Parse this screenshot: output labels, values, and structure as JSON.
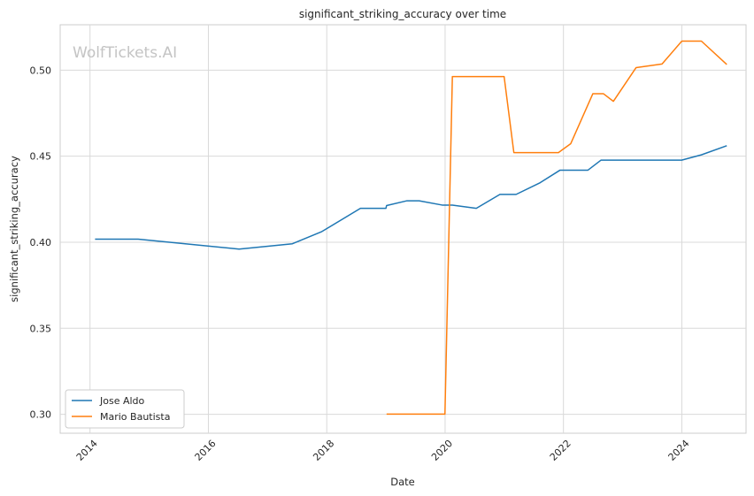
{
  "chart_data": {
    "type": "line",
    "title": "significant_striking_accuracy over time",
    "xlabel": "Date",
    "ylabel": "significant_striking_accuracy",
    "watermark": "WolfTickets.AI",
    "xlim": [
      "2013-07-01",
      "2025-02-01"
    ],
    "ylim": [
      0.289,
      0.5264
    ],
    "x_ticks": [
      "2014",
      "2016",
      "2018",
      "2020",
      "2022",
      "2024"
    ],
    "y_ticks": [
      "0.30",
      "0.35",
      "0.40",
      "0.45",
      "0.50"
    ],
    "grid": true,
    "legend_position": "lower-left",
    "series": [
      {
        "name": "Jose Aldo",
        "color": "#1f77b4",
        "points": [
          {
            "x": "2014-02-01",
            "y": 0.4018
          },
          {
            "x": "2014-10-25",
            "y": 0.4018
          },
          {
            "x": "2016-07-09",
            "y": 0.396
          },
          {
            "x": "2016-07-09",
            "y": 0.396
          },
          {
            "x": "2017-06-03",
            "y": 0.3991
          },
          {
            "x": "2017-12-02",
            "y": 0.4062
          },
          {
            "x": "2018-07-28",
            "y": 0.4197
          },
          {
            "x": "2019-01-01",
            "y": 0.4197
          },
          {
            "x": "2019-01-05",
            "y": 0.4213
          },
          {
            "x": "2019-05-11",
            "y": 0.4241
          },
          {
            "x": "2019-07-25",
            "y": 0.4241
          },
          {
            "x": "2019-12-14",
            "y": 0.4216
          },
          {
            "x": "2020-02-15",
            "y": 0.4216
          },
          {
            "x": "2020-07-12",
            "y": 0.4197
          },
          {
            "x": "2020-12-05",
            "y": 0.4278
          },
          {
            "x": "2021-03-15",
            "y": 0.4278
          },
          {
            "x": "2021-08-10",
            "y": 0.4346
          },
          {
            "x": "2021-12-11",
            "y": 0.4419
          },
          {
            "x": "2022-03-01",
            "y": 0.4419
          },
          {
            "x": "2022-06-01",
            "y": 0.4419
          },
          {
            "x": "2022-08-20",
            "y": 0.4477
          },
          {
            "x": "2023-12-31",
            "y": 0.4477
          },
          {
            "x": "2024-05-01",
            "y": 0.4508
          },
          {
            "x": "2024-10-05",
            "y": 0.4561
          }
        ]
      },
      {
        "name": "Mario Bautista",
        "color": "#ff7f0e",
        "points": [
          {
            "x": "2019-01-05",
            "y": 0.3001
          },
          {
            "x": "2019-12-31",
            "y": 0.3001
          },
          {
            "x": "2020-02-15",
            "y": 0.4963
          },
          {
            "x": "2020-12-31",
            "y": 0.4963
          },
          {
            "x": "2021-03-01",
            "y": 0.4521
          },
          {
            "x": "2021-12-01",
            "y": 0.4521
          },
          {
            "x": "2022-02-15",
            "y": 0.4573
          },
          {
            "x": "2022-07-01",
            "y": 0.4863
          },
          {
            "x": "2022-09-05",
            "y": 0.4863
          },
          {
            "x": "2022-11-05",
            "y": 0.4819
          },
          {
            "x": "2023-03-25",
            "y": 0.5015
          },
          {
            "x": "2023-09-01",
            "y": 0.5036
          },
          {
            "x": "2024-01-01",
            "y": 0.5169
          },
          {
            "x": "2024-05-01",
            "y": 0.5169
          },
          {
            "x": "2024-10-05",
            "y": 0.5033
          }
        ]
      }
    ]
  }
}
